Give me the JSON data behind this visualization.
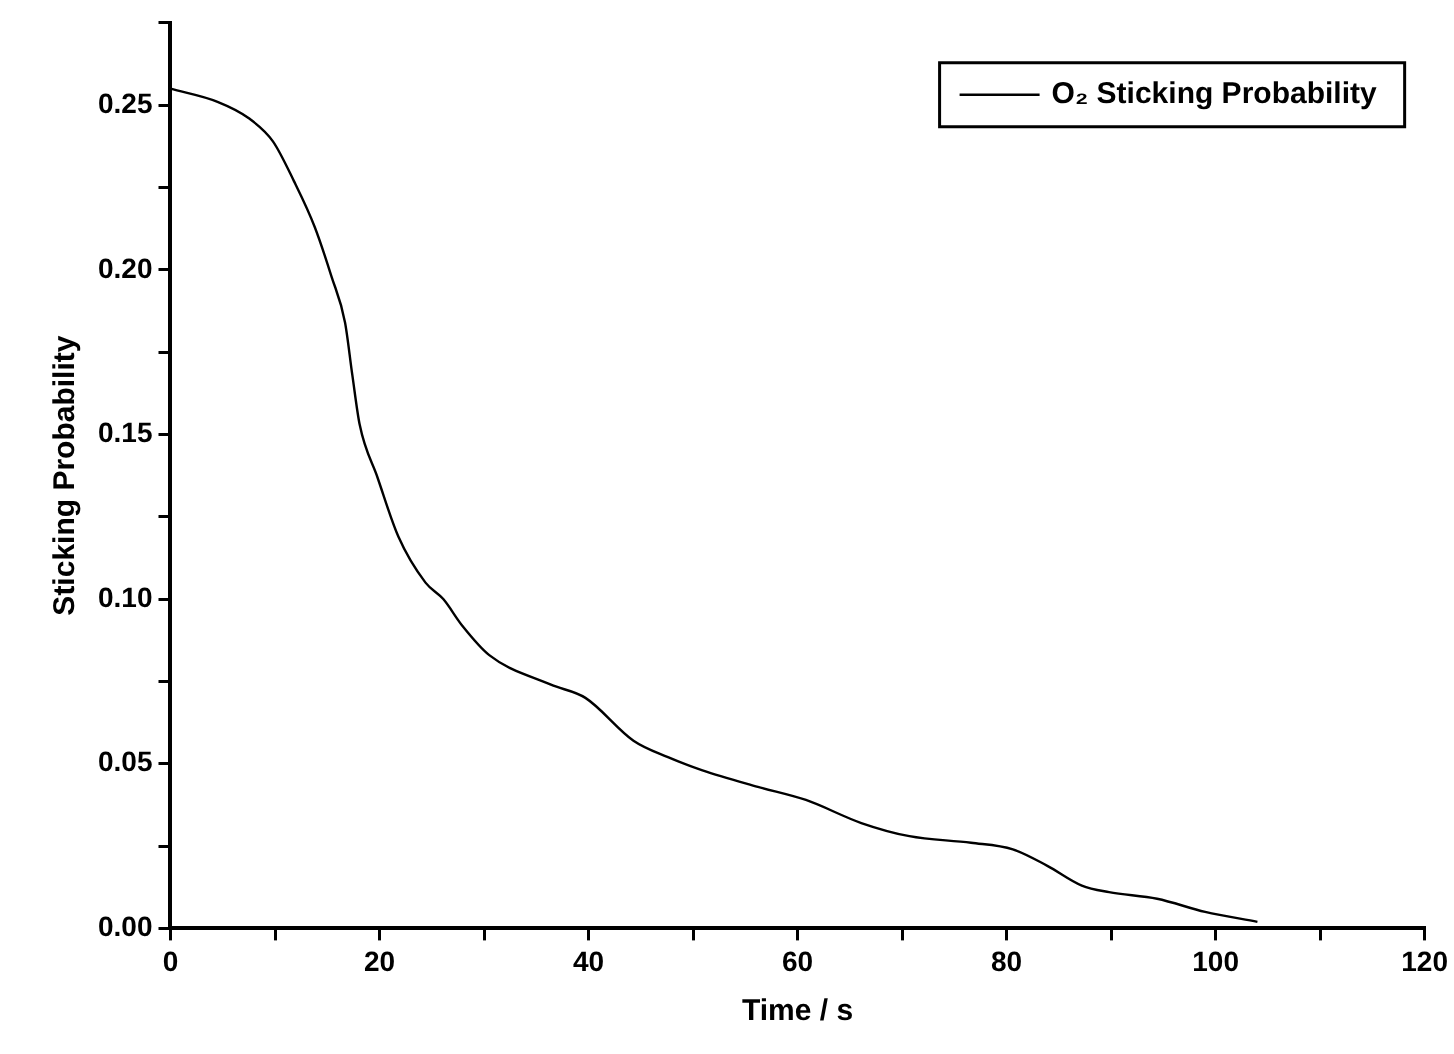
{
  "chart_data": {
    "type": "line",
    "xlabel": "Time / s",
    "ylabel": "Sticking Probability",
    "xlim": [
      0,
      120
    ],
    "xticks": [
      0,
      {
        "value": 10,
        "label": null
      },
      20,
      {
        "value": 30,
        "label": null
      },
      40,
      {
        "value": 50,
        "label": null
      },
      60,
      {
        "value": 70,
        "label": null
      },
      80,
      {
        "value": 90,
        "label": null
      },
      100,
      {
        "value": 110,
        "label": null
      },
      120
    ],
    "ylim": [
      0,
      0.275
    ],
    "yticks": [
      {
        "value": 0,
        "label": "0.00"
      },
      {
        "value": 0.025,
        "label": null
      },
      {
        "value": 0.05,
        "label": "0.05"
      },
      {
        "value": 0.075,
        "label": null
      },
      {
        "value": 0.1,
        "label": "0.10"
      },
      {
        "value": 0.125,
        "label": null
      },
      {
        "value": 0.15,
        "label": "0.15"
      },
      {
        "value": 0.175,
        "label": null
      },
      {
        "value": 0.2,
        "label": "0.20"
      },
      {
        "value": 0.225,
        "label": null
      },
      {
        "value": 0.25,
        "label": "0.25"
      },
      {
        "value": 0.275,
        "label": null
      }
    ],
    "grid": false,
    "legend": "top right",
    "marker": "none",
    "line_style": "solid",
    "series": [
      {
        "name": "O₂ Sticking Probability",
        "color": "#000000",
        "x": [
          0,
          4.5,
          7.5,
          9.8,
          11.8,
          13.8,
          15.4,
          16.7,
          17.4,
          18.1,
          19.8,
          21.8,
          24.4,
          26.1,
          27.9,
          30.5,
          36.4,
          39.7,
          44.3,
          47.6,
          50.9,
          56.2,
          60.8,
          66.1,
          70.7,
          76.6,
          80.6,
          83.9,
          87.2,
          89.8,
          94.4,
          99,
          104
        ],
        "values": [
          0.255,
          0.251,
          0.246,
          0.239,
          0.227,
          0.213,
          0.198,
          0.184,
          0.168,
          0.153,
          0.137,
          0.119,
          0.105,
          0.1,
          0.092,
          0.083,
          0.074,
          0.07,
          0.057,
          0.052,
          0.048,
          0.043,
          0.039,
          0.032,
          0.028,
          0.026,
          0.024,
          0.019,
          0.013,
          0.011,
          0.009,
          0.005,
          0.002
        ]
      }
    ]
  }
}
